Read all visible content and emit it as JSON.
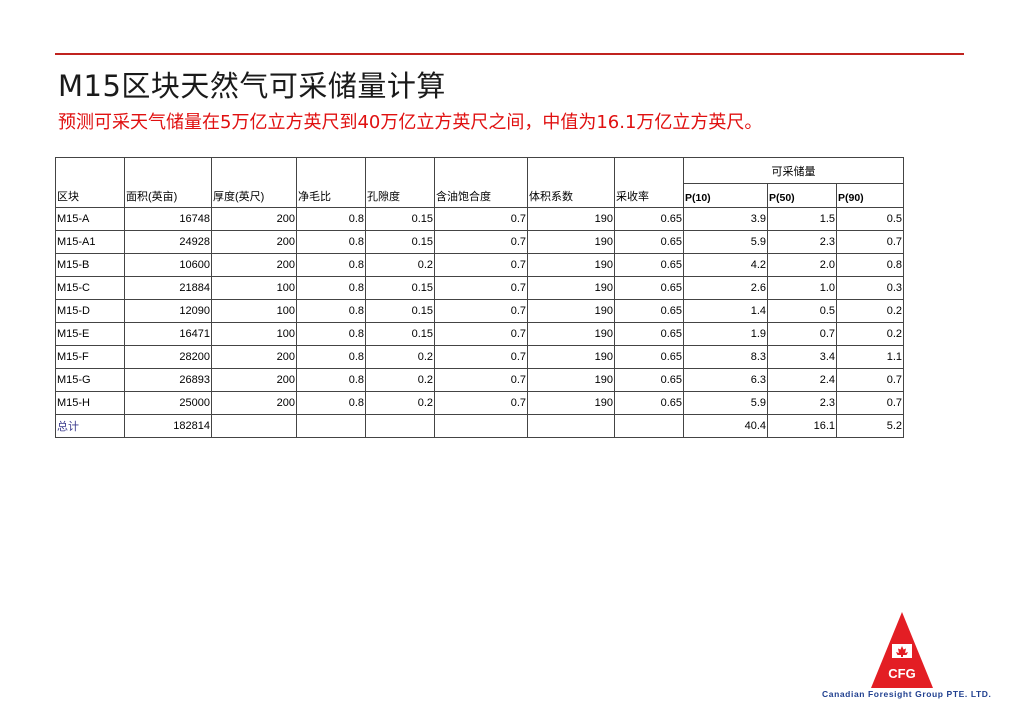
{
  "slide": {
    "title": "M15区块天然气可采储量计算",
    "subtitle": "预测可采天气储量在5万亿立方英尺到40万亿立方英尺之间，中值为16.1万亿立方英尺。"
  },
  "table": {
    "group_header": "可采储量",
    "headers": {
      "block": "区块",
      "area": "面积(英亩)",
      "thickness": "厚度(英尺)",
      "ntg": "净毛比",
      "porosity": "孔隙度",
      "saturation": "含油饱合度",
      "volume_factor": "体积系数",
      "recovery": "采收率",
      "p10": "P(10)",
      "p50": "P(50)",
      "p90": "P(90)"
    },
    "rows": [
      [
        "M15-A",
        "16748",
        "200",
        "0.8",
        "0.15",
        "0.7",
        "190",
        "0.65",
        "3.9",
        "1.5",
        "0.5"
      ],
      [
        "M15-A1",
        "24928",
        "200",
        "0.8",
        "0.15",
        "0.7",
        "190",
        "0.65",
        "5.9",
        "2.3",
        "0.7"
      ],
      [
        "M15-B",
        "10600",
        "200",
        "0.8",
        "0.2",
        "0.7",
        "190",
        "0.65",
        "4.2",
        "2.0",
        "0.8"
      ],
      [
        "M15-C",
        "21884",
        "100",
        "0.8",
        "0.15",
        "0.7",
        "190",
        "0.65",
        "2.6",
        "1.0",
        "0.3"
      ],
      [
        "M15-D",
        "12090",
        "100",
        "0.8",
        "0.15",
        "0.7",
        "190",
        "0.65",
        "1.4",
        "0.5",
        "0.2"
      ],
      [
        "M15-E",
        "16471",
        "100",
        "0.8",
        "0.15",
        "0.7",
        "190",
        "0.65",
        "1.9",
        "0.7",
        "0.2"
      ],
      [
        "M15-F",
        "28200",
        "200",
        "0.8",
        "0.2",
        "0.7",
        "190",
        "0.65",
        "8.3",
        "3.4",
        "1.1"
      ],
      [
        "M15-G",
        "26893",
        "200",
        "0.8",
        "0.2",
        "0.7",
        "190",
        "0.65",
        "6.3",
        "2.4",
        "0.7"
      ],
      [
        "M15-H",
        "25000",
        "200",
        "0.8",
        "0.2",
        "0.7",
        "190",
        "0.65",
        "5.9",
        "2.3",
        "0.7"
      ]
    ],
    "total": {
      "label": "总计",
      "area": "182814",
      "p10": "40.4",
      "p50": "16.1",
      "p90": "5.2"
    }
  },
  "logo": {
    "mark": "CFG",
    "company": "Canadian Foresight Group PTE. LTD.",
    "icon": "maple-leaf-icon",
    "colors": {
      "triangle": "#e31e24",
      "text": "#1f3f8f",
      "accent_line": "#c0231f"
    }
  }
}
